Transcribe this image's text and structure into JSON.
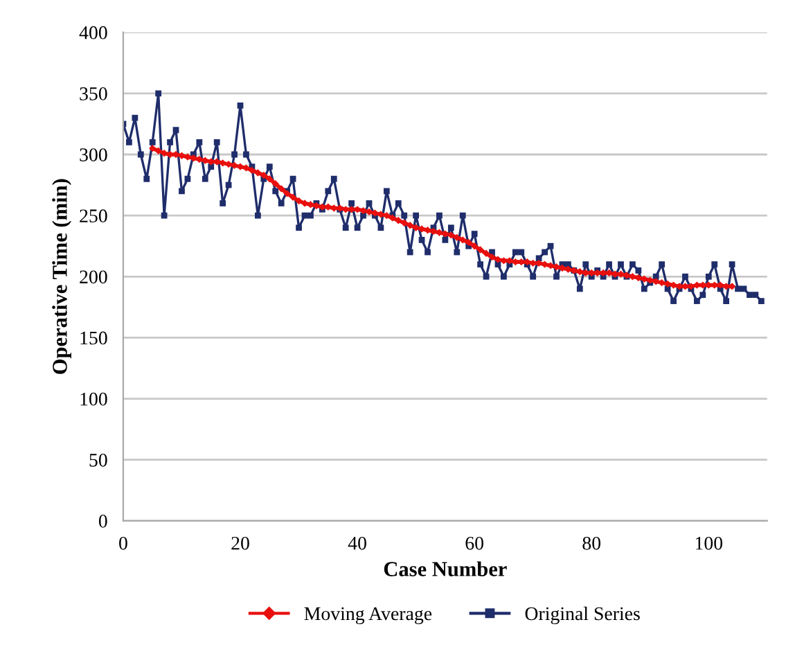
{
  "chart_data": {
    "type": "line",
    "xlabel": "Case Number",
    "ylabel": "Operative Time (min)",
    "xlim": [
      0,
      110
    ],
    "xticks": [
      0,
      20,
      40,
      60,
      80,
      100
    ],
    "ylim": [
      0,
      400
    ],
    "yticks": [
      0,
      50,
      100,
      150,
      200,
      250,
      300,
      350,
      400
    ],
    "grid": "y",
    "legend": "bottom",
    "series": [
      {
        "name": "Moving Average",
        "color": "#e8100e",
        "marker": "diamond",
        "x": [
          5,
          6,
          7,
          8,
          9,
          10,
          11,
          12,
          13,
          14,
          15,
          16,
          17,
          18,
          19,
          20,
          21,
          22,
          23,
          24,
          25,
          26,
          27,
          28,
          29,
          30,
          31,
          32,
          33,
          34,
          35,
          36,
          37,
          38,
          39,
          40,
          41,
          42,
          43,
          44,
          45,
          46,
          47,
          48,
          49,
          50,
          51,
          52,
          53,
          54,
          55,
          56,
          57,
          58,
          59,
          60,
          61,
          62,
          63,
          64,
          65,
          66,
          67,
          68,
          69,
          70,
          71,
          72,
          73,
          74,
          75,
          76,
          77,
          78,
          79,
          80,
          81,
          82,
          83,
          84,
          85,
          86,
          87,
          88,
          89,
          90,
          91,
          92,
          93,
          94,
          95,
          96,
          97,
          98,
          99,
          100,
          101,
          102,
          103,
          104
        ],
        "values": [
          305,
          303,
          301,
          300,
          300,
          299,
          298,
          297,
          296,
          295,
          294,
          294,
          293,
          292,
          291,
          290,
          289,
          287,
          285,
          283,
          280,
          276,
          272,
          268,
          265,
          262,
          260,
          259,
          258,
          257,
          257,
          256,
          256,
          255,
          255,
          255,
          254,
          253,
          252,
          251,
          250,
          248,
          246,
          244,
          242,
          240,
          239,
          238,
          237,
          236,
          235,
          234,
          232,
          230,
          228,
          225,
          222,
          219,
          216,
          214,
          213,
          213,
          212,
          212,
          212,
          211,
          211,
          210,
          209,
          208,
          207,
          206,
          205,
          204,
          203,
          203,
          203,
          203,
          203,
          202,
          202,
          201,
          200,
          199,
          198,
          197,
          196,
          195,
          194,
          193,
          192,
          192,
          192,
          193,
          193,
          193,
          193,
          193,
          192,
          192
        ]
      },
      {
        "name": "Original Series",
        "color": "#1f2d6b",
        "marker": "square",
        "x": [
          0,
          1,
          2,
          3,
          4,
          5,
          6,
          7,
          8,
          9,
          10,
          11,
          12,
          13,
          14,
          15,
          16,
          17,
          18,
          19,
          20,
          21,
          22,
          23,
          24,
          25,
          26,
          27,
          28,
          29,
          30,
          31,
          32,
          33,
          34,
          35,
          36,
          37,
          38,
          39,
          40,
          41,
          42,
          43,
          44,
          45,
          46,
          47,
          48,
          49,
          50,
          51,
          52,
          53,
          54,
          55,
          56,
          57,
          58,
          59,
          60,
          61,
          62,
          63,
          64,
          65,
          66,
          67,
          68,
          69,
          70,
          71,
          72,
          73,
          74,
          75,
          76,
          77,
          78,
          79,
          80,
          81,
          82,
          83,
          84,
          85,
          86,
          87,
          88,
          89,
          90,
          91,
          92,
          93,
          94,
          95,
          96,
          97,
          98,
          99,
          100,
          101,
          102,
          103,
          104,
          105,
          106,
          107,
          108,
          109
        ],
        "values": [
          325,
          310,
          330,
          300,
          280,
          310,
          350,
          250,
          310,
          320,
          270,
          280,
          300,
          310,
          280,
          290,
          310,
          260,
          275,
          300,
          340,
          300,
          290,
          250,
          280,
          290,
          270,
          260,
          270,
          280,
          240,
          250,
          250,
          260,
          255,
          270,
          280,
          255,
          240,
          260,
          240,
          250,
          260,
          250,
          240,
          270,
          250,
          260,
          250,
          220,
          250,
          230,
          220,
          240,
          250,
          230,
          240,
          220,
          250,
          225,
          235,
          210,
          200,
          220,
          210,
          200,
          210,
          220,
          220,
          210,
          200,
          215,
          220,
          225,
          200,
          210,
          210,
          205,
          190,
          210,
          200,
          205,
          200,
          210,
          200,
          210,
          200,
          210,
          205,
          190,
          195,
          200,
          210,
          190,
          180,
          190,
          200,
          190,
          180,
          185,
          200,
          210,
          190,
          180,
          210,
          190,
          190,
          185,
          185,
          180
        ]
      }
    ]
  }
}
